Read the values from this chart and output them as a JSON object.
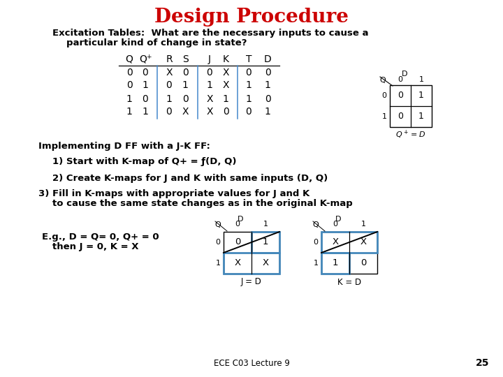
{
  "title": "Design Procedure",
  "title_color": "#CC0000",
  "title_fontsize": 20,
  "bg_color": "#FFFFFF",
  "body_fontsize": 10,
  "table_header": [
    "Q",
    "Q+",
    "R",
    "S",
    "J",
    "K",
    "T",
    "D"
  ],
  "table_rows": [
    [
      "0",
      "0",
      "X",
      "0",
      "0",
      "X",
      "0",
      "0"
    ],
    [
      "0",
      "1",
      "0",
      "1",
      "1",
      "X",
      "1",
      "1"
    ],
    [
      "1",
      "0",
      "1",
      "0",
      "X",
      "1",
      "1",
      "0"
    ],
    [
      "1",
      "1",
      "0",
      "X",
      "X",
      "0",
      "0",
      "1"
    ]
  ],
  "sep_color": "#4488CC",
  "highlight_color": "#4488BB",
  "footer": "ECE C03 Lecture 9",
  "page_num": "25"
}
